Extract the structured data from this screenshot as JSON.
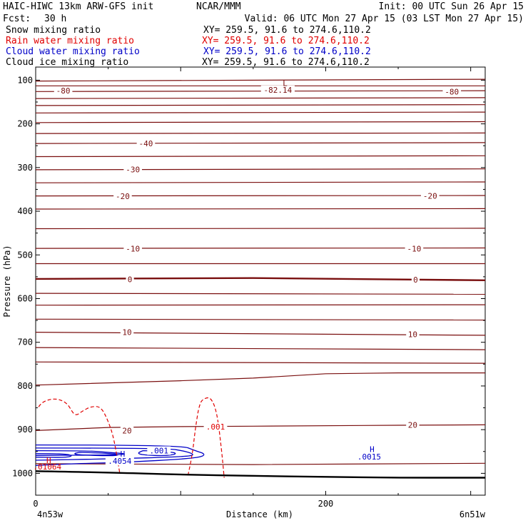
{
  "header": {
    "model": "HAIC-HIWC 13km ARW-GFS init",
    "org": "NCAR/MMM",
    "init": "Init: 00 UTC Sun 26 Apr 15",
    "fcst_label": "Fcst:",
    "fcst_value": "30 h",
    "valid": "Valid: 06 UTC Mon 27 Apr 15 (03 LST Mon 27 Apr 15)"
  },
  "fields": [
    {
      "name": "Snow mixing ratio",
      "xy": "XY= 259.5, 91.6 to 274.6,110.2",
      "color": "#000000"
    },
    {
      "name": "Rain water mixing ratio",
      "xy": "XY= 259.5, 91.6 to 274.6,110.2",
      "color": "#e00000"
    },
    {
      "name": "Cloud water mixing ratio",
      "xy": "XY= 259.5, 91.6 to 274.6,110.2",
      "color": "#0000c8"
    },
    {
      "name": "Cloud ice mixing ratio",
      "xy": "XY= 259.5, 91.6 to 274.6,110.2",
      "color": "#000000"
    }
  ],
  "chart_data": {
    "type": "line",
    "title": "",
    "xlabel": "Distance (km)",
    "ylabel": "Pressure (hPa)",
    "xlim": [
      0,
      310
    ],
    "ylim": [
      1050,
      70
    ],
    "x_ticks": [
      0,
      200
    ],
    "y_ticks": [
      100,
      200,
      300,
      400,
      500,
      600,
      700,
      800,
      900,
      1000
    ],
    "endpoint_left": "4n53w",
    "endpoint_right": "6n51w",
    "colors": {
      "temperature": "#7a0f0f",
      "rain": "#e00000",
      "cloud_water": "#0000c8",
      "ground": "#000000"
    },
    "ground": [
      [
        0,
        995
      ],
      [
        50,
        998
      ],
      [
        100,
        1003
      ],
      [
        150,
        1006
      ],
      [
        200,
        1008
      ],
      [
        250,
        1010
      ],
      [
        310,
        1010
      ]
    ],
    "temperature_contours": [
      {
        "p": [
          [
            0,
            102
          ],
          [
            310,
            98
          ]
        ],
        "label": ""
      },
      {
        "p": [
          [
            0,
            113
          ],
          [
            310,
            113
          ]
        ],
        "label": ""
      },
      {
        "p": [
          [
            0,
            126
          ],
          [
            310,
            124
          ]
        ],
        "label": "-80"
      },
      {
        "p": [
          [
            0,
            142
          ],
          [
            310,
            140
          ]
        ],
        "label": ""
      },
      {
        "p": [
          [
            0,
            158
          ],
          [
            310,
            156
          ]
        ],
        "label": ""
      },
      {
        "p": [
          [
            0,
            175
          ],
          [
            310,
            173
          ]
        ],
        "label": ""
      },
      {
        "p": [
          [
            0,
            197
          ],
          [
            310,
            195
          ]
        ],
        "label": ""
      },
      {
        "p": [
          [
            0,
            222
          ],
          [
            310,
            221
          ]
        ],
        "label": ""
      },
      {
        "p": [
          [
            0,
            245
          ],
          [
            310,
            243
          ]
        ],
        "label": "-40"
      },
      {
        "p": [
          [
            0,
            275
          ],
          [
            310,
            273
          ]
        ],
        "label": ""
      },
      {
        "p": [
          [
            0,
            305
          ],
          [
            310,
            303
          ]
        ],
        "label": "-30"
      },
      {
        "p": [
          [
            0,
            335
          ],
          [
            310,
            333
          ]
        ],
        "label": ""
      },
      {
        "p": [
          [
            0,
            365
          ],
          [
            310,
            364
          ]
        ],
        "label": "-20"
      },
      {
        "p": [
          [
            0,
            395
          ],
          [
            310,
            394
          ]
        ],
        "label": ""
      },
      {
        "p": [
          [
            0,
            440
          ],
          [
            310,
            439
          ]
        ],
        "label": ""
      },
      {
        "p": [
          [
            0,
            485
          ],
          [
            310,
            484
          ]
        ],
        "label": "-10"
      },
      {
        "p": [
          [
            0,
            520
          ],
          [
            310,
            520
          ]
        ],
        "label": ""
      },
      {
        "p": [
          [
            0,
            555
          ],
          [
            150,
            553
          ],
          [
            310,
            558
          ]
        ],
        "label": "0",
        "bold": true
      },
      {
        "p": [
          [
            0,
            588
          ],
          [
            310,
            590
          ]
        ],
        "label": ""
      },
      {
        "p": [
          [
            0,
            615
          ],
          [
            310,
            614
          ]
        ],
        "label": ""
      },
      {
        "p": [
          [
            0,
            647
          ],
          [
            310,
            649
          ]
        ],
        "label": ""
      },
      {
        "p": [
          [
            0,
            677
          ],
          [
            310,
            684
          ]
        ],
        "label": "10"
      },
      {
        "p": [
          [
            0,
            712
          ],
          [
            310,
            717
          ]
        ],
        "label": ""
      },
      {
        "p": [
          [
            0,
            745
          ],
          [
            310,
            748
          ]
        ],
        "label": ""
      },
      {
        "p": [
          [
            0,
            798
          ],
          [
            100,
            788
          ],
          [
            150,
            782
          ],
          [
            200,
            772
          ],
          [
            250,
            770
          ],
          [
            310,
            770
          ]
        ],
        "label": ""
      },
      {
        "p": [
          [
            0,
            902
          ],
          [
            50,
            895
          ],
          [
            100,
            893
          ],
          [
            150,
            892
          ],
          [
            250,
            890
          ],
          [
            310,
            889
          ]
        ],
        "label": "20"
      },
      {
        "p": [
          [
            0,
            978
          ],
          [
            150,
            980
          ],
          [
            310,
            977
          ]
        ],
        "label": ""
      }
    ],
    "temperature_labels": [
      {
        "text": "-80",
        "x": 19,
        "p": 124
      },
      {
        "text": "-82.14",
        "x": 167,
        "p": 122
      },
      {
        "text": "-80",
        "x": 287,
        "p": 126
      },
      {
        "text": "-40",
        "x": 76,
        "p": 245
      },
      {
        "text": "-30",
        "x": 67,
        "p": 304
      },
      {
        "text": "-20",
        "x": 60,
        "p": 366
      },
      {
        "text": "-20",
        "x": 272,
        "p": 365
      },
      {
        "text": "-10",
        "x": 67,
        "p": 486
      },
      {
        "text": "-10",
        "x": 261,
        "p": 486
      },
      {
        "text": "0",
        "x": 65,
        "p": 556
      },
      {
        "text": "0",
        "x": 262,
        "p": 557
      },
      {
        "text": "10",
        "x": 63,
        "p": 677
      },
      {
        "text": "10",
        "x": 260,
        "p": 682
      },
      {
        "text": "20",
        "x": 63,
        "p": 902
      },
      {
        "text": "20",
        "x": 260,
        "p": 889
      }
    ],
    "low_marker": {
      "text": "L",
      "x": 172,
      "p": 107
    },
    "rain_contours": [
      {
        "level": 0.001,
        "p": [
          [
            2,
            848
          ],
          [
            4,
            838
          ],
          [
            10,
            830
          ],
          [
            16,
            830
          ],
          [
            22,
            840
          ],
          [
            27,
            870
          ],
          [
            32,
            858
          ],
          [
            38,
            847
          ],
          [
            45,
            847
          ],
          [
            50,
            880
          ],
          [
            54,
            920
          ],
          [
            58,
            1000
          ]
        ]
      },
      {
        "level": 0.001,
        "p": [
          [
            105,
            1005
          ],
          [
            108,
            960
          ],
          [
            110,
            900
          ],
          [
            113,
            838
          ],
          [
            117,
            827
          ],
          [
            121,
            827
          ],
          [
            125,
            860
          ],
          [
            128,
            940
          ],
          [
            130,
            1010
          ]
        ]
      }
    ],
    "rain_labels": [
      {
        "text": ".001",
        "x": 124,
        "p": 893
      }
    ],
    "cloud_water_contours": [
      {
        "p": [
          [
            0,
            935
          ],
          [
            100,
            935
          ],
          [
            110,
            948
          ],
          [
            118,
            957
          ],
          [
            110,
            966
          ],
          [
            60,
            975
          ],
          [
            25,
            978
          ],
          [
            0,
            982
          ]
        ]
      },
      {
        "p": [
          [
            0,
            942
          ],
          [
            90,
            942
          ],
          [
            104,
            950
          ],
          [
            110,
            958
          ],
          [
            102,
            962
          ],
          [
            50,
            967
          ],
          [
            0,
            970
          ]
        ]
      },
      {
        "p": [
          [
            0,
            948
          ],
          [
            35,
            948
          ],
          [
            50,
            952
          ],
          [
            65,
            956
          ],
          [
            50,
            958
          ],
          [
            0,
            959
          ]
        ]
      },
      {
        "p": [
          [
            30,
            952
          ],
          [
            52,
            954
          ],
          [
            58,
            958
          ],
          [
            52,
            960
          ],
          [
            30,
            958
          ],
          [
            26,
            955
          ],
          [
            30,
            952
          ]
        ]
      },
      {
        "p": [
          [
            74,
            948
          ],
          [
            92,
            950
          ],
          [
            98,
            955
          ],
          [
            90,
            960
          ],
          [
            74,
            958
          ],
          [
            70,
            954
          ],
          [
            74,
            948
          ]
        ]
      },
      {
        "p": [
          [
            0,
            955
          ],
          [
            20,
            955
          ],
          [
            26,
            960
          ],
          [
            20,
            964
          ],
          [
            0,
            963
          ]
        ]
      }
    ],
    "cloud_water_labels": [
      {
        "text": ".001",
        "x": 85,
        "p": 948
      },
      {
        "text": ".4054",
        "x": 58,
        "p": 972
      },
      {
        "text": ".0015",
        "x": 230,
        "p": 962
      }
    ],
    "highs": [
      {
        "text": "H",
        "x": 60,
        "p": 955,
        "color": "#0000c8"
      },
      {
        "text": "H",
        "x": 232,
        "p": 945,
        "color": "#0000c8"
      },
      {
        "text": "H",
        "x": 9,
        "p": 970,
        "color": "#e00000"
      }
    ],
    "high_values": [
      {
        "text": ".01064",
        "x": 8,
        "p": 985,
        "color": "#e00000"
      }
    ]
  }
}
